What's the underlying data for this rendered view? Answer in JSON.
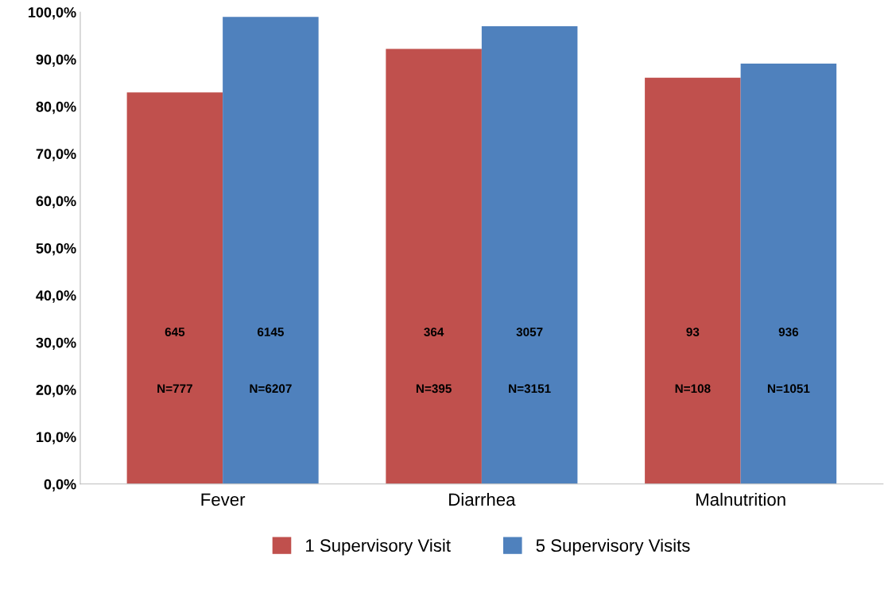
{
  "chart_data": {
    "type": "bar",
    "categories": [
      "Fever",
      "Diarrhea",
      "Malnutrition"
    ],
    "series": [
      {
        "name": "1 Supervisory Visit",
        "color": "#c0504d",
        "values": [
          83.0,
          92.2,
          86.1
        ]
      },
      {
        "name": "5 Supervisory Visits",
        "color": "#4f81bd",
        "values": [
          99.0,
          97.0,
          89.1
        ]
      }
    ],
    "annotations": [
      "645",
      "6145",
      "N=777",
      "N=6207",
      "364",
      "3057",
      "N=395",
      "N=3151",
      "93",
      "936",
      "N=108",
      "N=1051"
    ],
    "ylim": [
      0,
      100
    ],
    "yticks": [
      {
        "value": 0,
        "label": "0,0%"
      },
      {
        "value": 10,
        "label": "10,0%"
      },
      {
        "value": 20,
        "label": "20,0%"
      },
      {
        "value": 30,
        "label": "30,0%"
      },
      {
        "value": 40,
        "label": "40,0%"
      },
      {
        "value": 50,
        "label": "50,0%"
      },
      {
        "value": 60,
        "label": "60,0%"
      },
      {
        "value": 70,
        "label": "70,0%"
      },
      {
        "value": 80,
        "label": "80,0%"
      },
      {
        "value": 90,
        "label": "90,0%"
      },
      {
        "value": 100,
        "label": "100,0%"
      }
    ],
    "grid": false,
    "legend": "bottom"
  }
}
